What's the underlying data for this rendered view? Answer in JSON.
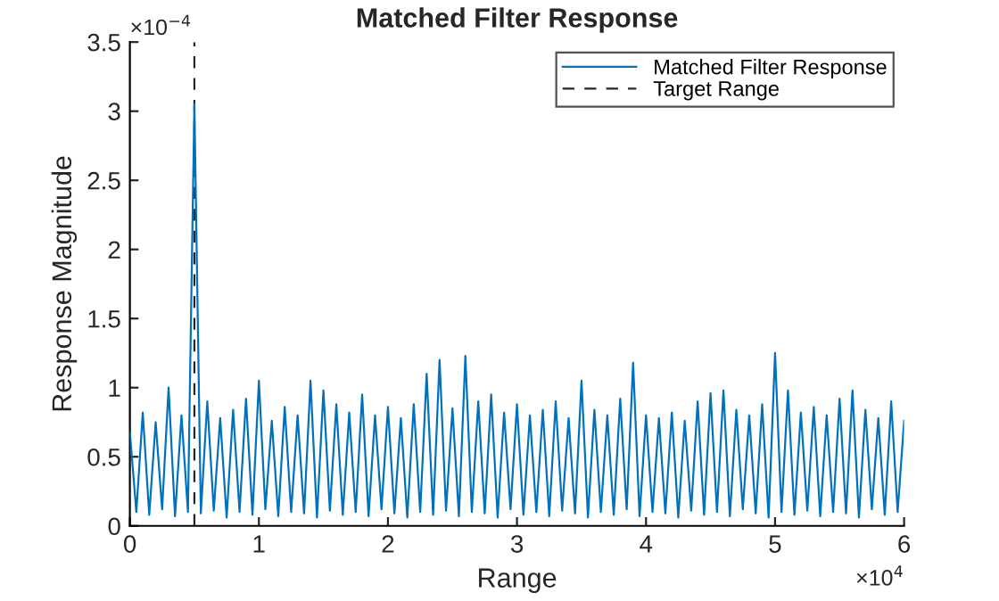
{
  "chart_data": {
    "type": "line",
    "title": "Matched Filter Response",
    "xlabel": "Range",
    "ylabel": "Response Magnitude",
    "annotations": [
      "×10$^{−4}$",
      "×10$^{4}$"
    ],
    "x": [
      0,
      0.05,
      0.1,
      0.15,
      0.2,
      0.25,
      0.3,
      0.35,
      0.4,
      0.45,
      0.5,
      0.55,
      0.6,
      0.65,
      0.7,
      0.75,
      0.8,
      0.85,
      0.9,
      0.95,
      1.0,
      1.05,
      1.1,
      1.15,
      1.2,
      1.25,
      1.3,
      1.35,
      1.4,
      1.45,
      1.5,
      1.55,
      1.6,
      1.65,
      1.7,
      1.75,
      1.8,
      1.85,
      1.9,
      1.95,
      2.0,
      2.05,
      2.1,
      2.15,
      2.2,
      2.25,
      2.3,
      2.35,
      2.4,
      2.45,
      2.5,
      2.55,
      2.6,
      2.65,
      2.7,
      2.75,
      2.8,
      2.85,
      2.9,
      2.95,
      3.0,
      3.05,
      3.1,
      3.15,
      3.2,
      3.25,
      3.3,
      3.35,
      3.4,
      3.45,
      3.5,
      3.55,
      3.6,
      3.65,
      3.7,
      3.75,
      3.8,
      3.85,
      3.9,
      3.95,
      4.0,
      4.05,
      4.1,
      4.15,
      4.2,
      4.25,
      4.3,
      4.35,
      4.4,
      4.45,
      4.5,
      4.55,
      4.6,
      4.65,
      4.7,
      4.75,
      4.8,
      4.85,
      4.9,
      4.95,
      5.0,
      5.05,
      5.1,
      5.15,
      5.2,
      5.25,
      5.3,
      5.35,
      5.4,
      5.45,
      5.5,
      5.55,
      5.6,
      5.65,
      5.7,
      5.75,
      5.8,
      5.85,
      5.9,
      5.95,
      6.0
    ],
    "series": [
      {
        "name": "Matched Filter Response",
        "color": "#0072bd",
        "values": [
          0.68,
          0.1,
          0.82,
          0.08,
          0.75,
          0.12,
          1.0,
          0.07,
          0.8,
          0.1,
          3.05,
          0.09,
          0.9,
          0.11,
          0.78,
          0.06,
          0.84,
          0.1,
          0.92,
          0.08,
          1.05,
          0.12,
          0.76,
          0.07,
          0.86,
          0.1,
          0.8,
          0.09,
          1.05,
          0.06,
          0.98,
          0.11,
          0.88,
          0.08,
          0.82,
          0.1,
          0.95,
          0.07,
          0.8,
          0.12,
          0.86,
          0.09,
          0.78,
          0.06,
          0.88,
          0.1,
          1.1,
          0.08,
          1.2,
          0.11,
          0.85,
          0.07,
          1.23,
          0.1,
          0.9,
          0.09,
          0.95,
          0.06,
          0.82,
          0.12,
          0.88,
          0.08,
          0.8,
          0.1,
          0.84,
          0.07,
          0.9,
          0.11,
          0.78,
          0.09,
          1.05,
          0.06,
          0.84,
          0.1,
          0.8,
          0.08,
          0.92,
          0.12,
          1.18,
          0.07,
          0.8,
          0.1,
          0.78,
          0.09,
          0.82,
          0.06,
          0.76,
          0.11,
          0.9,
          0.08,
          0.96,
          0.1,
          0.98,
          0.07,
          0.84,
          0.12,
          0.8,
          0.09,
          0.88,
          0.06,
          1.25,
          0.1,
          0.98,
          0.08,
          0.82,
          0.11,
          0.86,
          0.07,
          0.8,
          0.1,
          0.92,
          0.09,
          0.98,
          0.06,
          0.84,
          0.12,
          0.78,
          0.08,
          0.9,
          0.1,
          0.76
        ]
      }
    ],
    "ref_lines": [
      {
        "axis": "x",
        "value": 0.5,
        "label": "Target Range",
        "color": "#262626",
        "line_style": "dashed"
      }
    ],
    "xlim": [
      0,
      6
    ],
    "xticks": [
      0,
      1,
      2,
      3,
      4,
      5,
      6
    ],
    "ylim": [
      0,
      3.5
    ],
    "yticks": [
      0,
      0.5,
      1,
      1.5,
      2,
      2.5,
      3,
      3.5
    ],
    "legend": "top right",
    "grid": false,
    "line_style": "solid"
  }
}
